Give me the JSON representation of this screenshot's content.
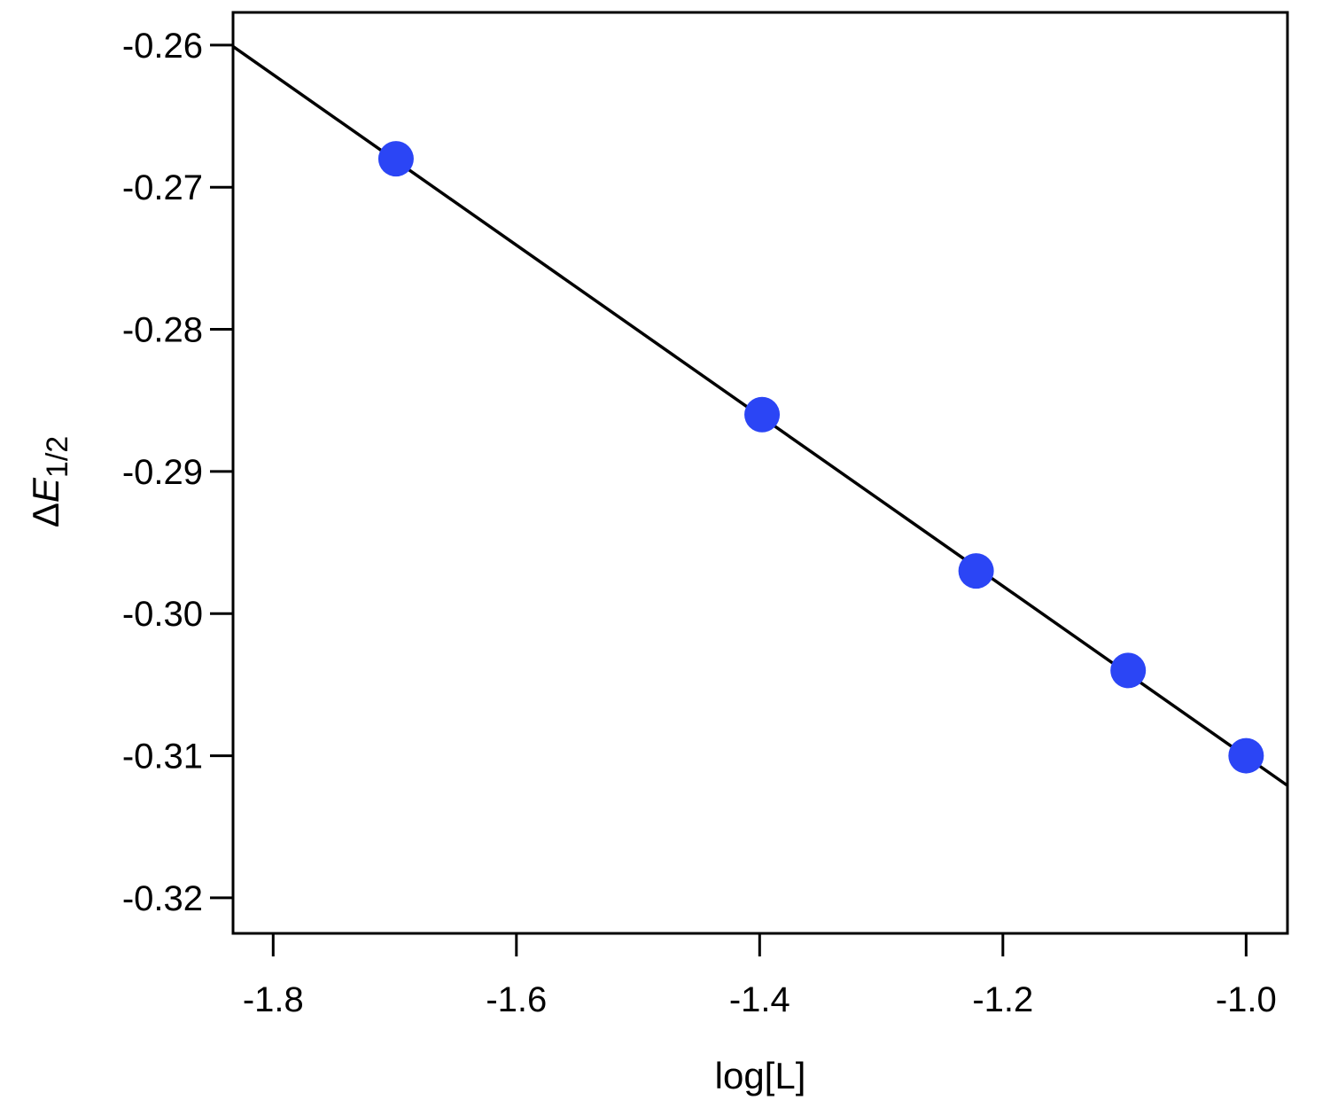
{
  "chart_data": {
    "type": "scatter",
    "xlabel": "log[L]",
    "ylabel": {
      "delta": "Δ",
      "main": "E",
      "subscript": "1/2"
    },
    "xlim": [
      -1.833,
      -0.966
    ],
    "ylim": [
      -0.3225,
      -0.2577
    ],
    "x_ticks": [
      {
        "value": -1.8,
        "label": "-1.8"
      },
      {
        "value": -1.6,
        "label": "-1.6"
      },
      {
        "value": -1.4,
        "label": "-1.4"
      },
      {
        "value": -1.2,
        "label": "-1.2"
      },
      {
        "value": -1.0,
        "label": "-1.0"
      }
    ],
    "y_ticks": [
      {
        "value": -0.26,
        "label": "-0.26"
      },
      {
        "value": -0.27,
        "label": "-0.27"
      },
      {
        "value": -0.28,
        "label": "-0.28"
      },
      {
        "value": -0.29,
        "label": "-0.29"
      },
      {
        "value": -0.3,
        "label": "-0.30"
      },
      {
        "value": -0.31,
        "label": "-0.31"
      },
      {
        "value": -0.32,
        "label": "-0.32"
      }
    ],
    "series": [
      {
        "x": [
          -1.699,
          -1.398,
          -1.222,
          -1.097,
          -1.0
        ],
        "y": [
          -0.268,
          -0.286,
          -0.297,
          -0.304,
          -0.31
        ],
        "color": "#2b45f5"
      }
    ],
    "fit_line": {
      "x": [
        -1.833,
        -0.966
      ],
      "y": [
        -0.2601,
        -0.3121
      ],
      "color": "#000000"
    },
    "grid": false,
    "legend": "none"
  }
}
